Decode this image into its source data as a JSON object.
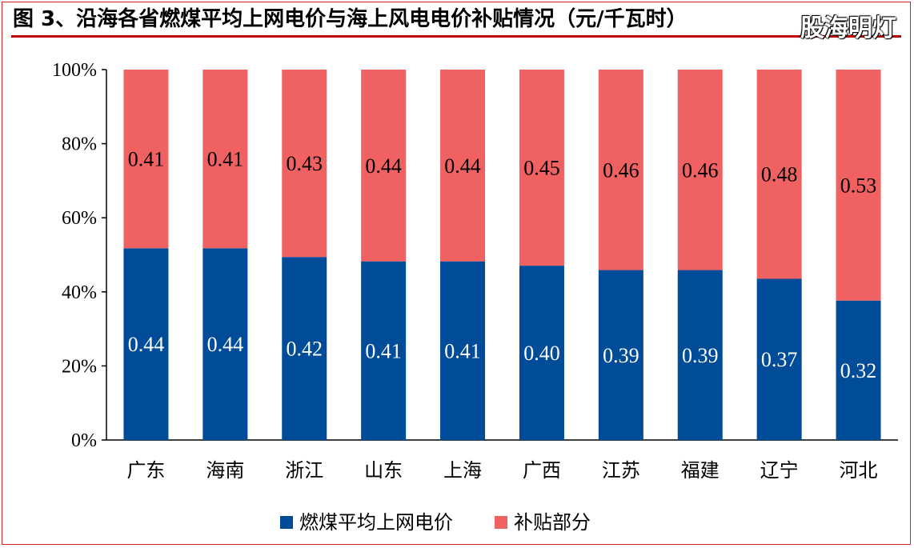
{
  "title": "图 3、沿海各省燃煤平均上网电价与海上风电电价补贴情况（元/千瓦时）",
  "watermark": "股海明灯",
  "chart_data": {
    "type": "bar",
    "stacked": true,
    "normalized": true,
    "categories": [
      "广东",
      "海南",
      "浙江",
      "山东",
      "上海",
      "广西",
      "江苏",
      "福建",
      "辽宁",
      "河北"
    ],
    "series": [
      {
        "name": "燃煤平均上网电价",
        "color": "#004c99",
        "label_color": "#ffffff",
        "values": [
          0.44,
          0.44,
          0.42,
          0.41,
          0.41,
          0.4,
          0.39,
          0.39,
          0.37,
          0.32
        ]
      },
      {
        "name": "补贴部分",
        "color": "#f06262",
        "label_color": "#000000",
        "values": [
          0.41,
          0.41,
          0.43,
          0.44,
          0.44,
          0.45,
          0.46,
          0.46,
          0.48,
          0.53
        ]
      }
    ],
    "yticks": [
      "0%",
      "20%",
      "40%",
      "60%",
      "80%",
      "100%"
    ],
    "ylim": [
      0,
      100
    ],
    "legend_position": "bottom",
    "grid": false
  }
}
